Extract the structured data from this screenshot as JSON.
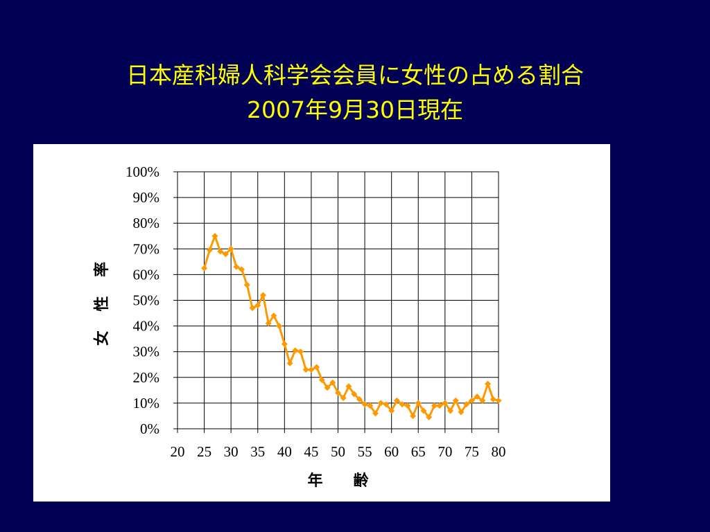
{
  "slide": {
    "title_line1": "日本産科婦人科学会会員に女性の占める割合",
    "title_line2": "2007年9月30日現在"
  },
  "chart_data": {
    "type": "line",
    "title": "",
    "xlabel": "年　　齢",
    "ylabel": "女 性 率",
    "xlim": [
      20,
      80
    ],
    "ylim": [
      0,
      100
    ],
    "x_ticks": [
      20,
      25,
      30,
      35,
      40,
      45,
      50,
      55,
      60,
      65,
      70,
      75,
      80
    ],
    "y_ticks": [
      0,
      10,
      20,
      30,
      40,
      50,
      60,
      70,
      80,
      90,
      100
    ],
    "y_tick_labels": [
      "0%",
      "10%",
      "20%",
      "30%",
      "40%",
      "50%",
      "60%",
      "70%",
      "80%",
      "90%",
      "100%"
    ],
    "grid": true,
    "series_color": "#FF9900",
    "series": [
      {
        "x": [
          25,
          26,
          27,
          28,
          29,
          30,
          31,
          32,
          33,
          34,
          35,
          36,
          37,
          38,
          39,
          40,
          41,
          42,
          43,
          44,
          45,
          46,
          47,
          48,
          49,
          50,
          51,
          52,
          53,
          54,
          55,
          56,
          57,
          58,
          59,
          60,
          61,
          62,
          63,
          64,
          65,
          66,
          67,
          68,
          69,
          70,
          71,
          72,
          73,
          74,
          75,
          76,
          77,
          78,
          79,
          80
        ],
        "y": [
          62.5,
          69.5,
          75,
          69,
          68,
          70,
          63,
          62,
          56,
          47,
          48,
          52,
          41,
          44,
          40,
          33,
          25.5,
          30.5,
          30,
          23,
          23,
          24,
          19,
          16,
          18,
          14,
          12,
          16.5,
          13.5,
          11.5,
          9.5,
          9,
          6,
          10,
          9.5,
          7,
          11,
          9.5,
          9,
          5,
          10,
          7,
          4.5,
          9,
          9,
          10,
          7,
          11,
          6.5,
          9.5,
          11,
          12.5,
          11,
          17.5,
          11.5,
          11
        ]
      }
    ]
  }
}
